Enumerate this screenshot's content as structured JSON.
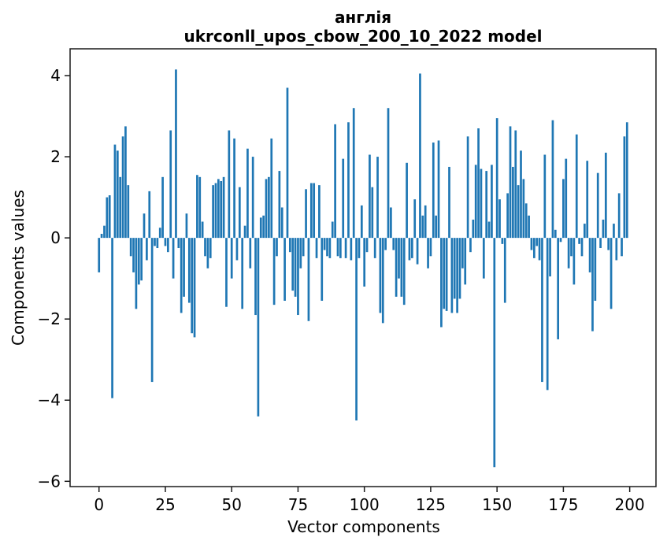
{
  "header": {
    "title_line1": "англія",
    "title_line2": "ukrconll_upos_cbow_200_10_2022 model"
  },
  "chart_data": {
    "type": "bar",
    "title": "англія",
    "subtitle": "ukrconll_upos_cbow_200_10_2022 model",
    "xlabel": "Vector components",
    "ylabel": "Components values",
    "x_ticks": [
      0,
      25,
      50,
      75,
      100,
      125,
      150,
      175,
      200
    ],
    "y_ticks": [
      4,
      2,
      0,
      -2,
      -4,
      -6
    ],
    "xlim": [
      -10.9,
      209.9
    ],
    "ylim": [
      -6.13,
      4.66
    ],
    "grid": false,
    "legend": "none",
    "bar_color": "#1f77b4",
    "bar_width": 0.8,
    "n_components": 200,
    "values": [
      -0.85,
      0.1,
      0.3,
      1.0,
      1.05,
      -3.95,
      2.3,
      2.15,
      1.5,
      2.5,
      2.75,
      1.3,
      -0.45,
      -0.85,
      -1.75,
      -1.15,
      -1.05,
      0.6,
      -0.55,
      1.15,
      -3.55,
      -0.2,
      -0.25,
      0.25,
      1.5,
      -0.2,
      -0.35,
      2.65,
      -1.0,
      4.15,
      -0.25,
      -1.85,
      -1.45,
      0.6,
      -1.6,
      -2.35,
      -2.45,
      1.55,
      1.5,
      0.4,
      -0.45,
      -0.75,
      -0.5,
      1.3,
      1.35,
      1.45,
      1.4,
      1.5,
      -1.7,
      2.65,
      -1.0,
      2.45,
      -0.55,
      1.25,
      -1.75,
      0.3,
      2.2,
      -0.75,
      2.0,
      -1.9,
      -4.4,
      0.5,
      0.55,
      1.45,
      1.5,
      2.45,
      -1.65,
      -0.45,
      1.65,
      0.75,
      -1.55,
      3.7,
      -0.35,
      -1.3,
      -1.45,
      -1.9,
      -0.75,
      -0.45,
      1.2,
      -2.05,
      1.35,
      1.35,
      -0.5,
      1.3,
      -1.55,
      -0.3,
      -0.45,
      -0.5,
      0.4,
      2.8,
      -0.45,
      -0.5,
      1.95,
      -0.5,
      2.85,
      -0.55,
      3.2,
      -4.5,
      -0.5,
      0.8,
      -1.2,
      -0.35,
      2.05,
      1.25,
      -0.5,
      2.0,
      -1.85,
      -2.1,
      -0.3,
      3.2,
      0.75,
      -0.3,
      -1.45,
      -1.0,
      -1.45,
      -1.65,
      1.85,
      -0.55,
      -0.5,
      0.95,
      -0.65,
      4.05,
      0.55,
      0.8,
      -0.75,
      -0.45,
      2.35,
      0.55,
      2.4,
      -2.2,
      -1.75,
      -1.8,
      1.75,
      -1.85,
      -1.5,
      -1.85,
      -1.5,
      -0.75,
      -1.15,
      2.5,
      -0.35,
      0.45,
      1.8,
      2.7,
      1.7,
      -1.0,
      1.65,
      0.4,
      1.8,
      -5.65,
      2.95,
      0.95,
      -0.15,
      -1.6,
      1.1,
      2.75,
      1.75,
      2.65,
      1.3,
      2.15,
      1.45,
      0.85,
      0.55,
      -0.3,
      -0.5,
      -0.2,
      -0.55,
      -3.55,
      2.05,
      -3.75,
      -0.95,
      2.9,
      0.2,
      -2.5,
      -0.1,
      1.45,
      1.95,
      -0.75,
      -0.45,
      -1.15,
      2.55,
      -0.15,
      -0.45,
      0.35,
      1.9,
      -0.85,
      -2.3,
      -1.55,
      1.6,
      -0.25,
      0.45,
      2.1,
      -0.3,
      -1.75,
      0.35,
      -0.55,
      1.1,
      -0.45,
      2.5,
      2.85
    ]
  },
  "layout_colors": {
    "spine": "#1a1a1a",
    "background": "#ffffff"
  }
}
